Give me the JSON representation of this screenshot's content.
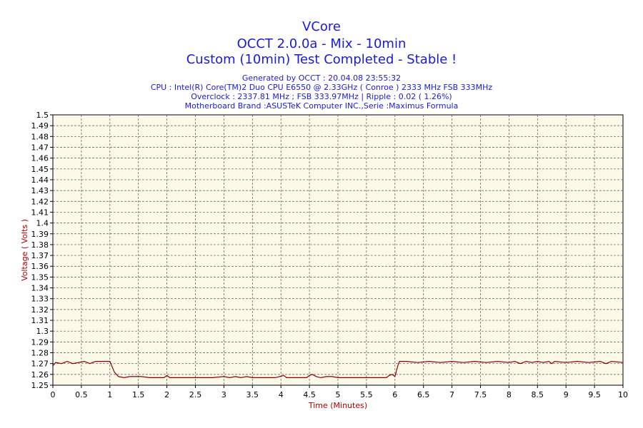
{
  "title": "VCore",
  "subtitle1": "OCCT 2.0.0a - Mix - 10min",
  "subtitle2": "Custom (10min) Test Completed - Stable !",
  "info": [
    "Generated by OCCT : 20.04.08 23:55:32",
    "CPU : Intel(R) Core(TM)2 Duo CPU E6550 @ 2.33GHz ( Conroe ) 2333 MHz FSB 333MHz",
    "Overclock : 2337.81 MHz ; FSB 333.97MHz | Ripple : 0.02 ( 1.26%)",
    "Motherboard Brand :ASUSTeK Computer INC.,Serie :Maximus Formula"
  ],
  "colors": {
    "text": "#1a1adb",
    "line": "#8b0000",
    "plot_bg": "#fdf9e8",
    "axis_label": "#b00000"
  },
  "chart_data": {
    "type": "line",
    "xlabel": "Time (Minutes)",
    "ylabel": "Voltage ( Volts )",
    "xlim": [
      0,
      10
    ],
    "ylim": [
      1.25,
      1.5
    ],
    "x_ticks": [
      "0",
      "0.5",
      "1",
      "1.5",
      "2",
      "2.5",
      "3",
      "3.5",
      "4",
      "4.5",
      "5",
      "5.5",
      "6",
      "6.5",
      "7",
      "7.5",
      "8",
      "8.5",
      "9",
      "9.5",
      "10"
    ],
    "y_ticks": [
      "1.25",
      "1.26",
      "1.27",
      "1.28",
      "1.29",
      "1.3",
      "1.31",
      "1.32",
      "1.33",
      "1.34",
      "1.35",
      "1.36",
      "1.37",
      "1.38",
      "1.39",
      "1.4",
      "1.41",
      "1.42",
      "1.43",
      "1.44",
      "1.45",
      "1.46",
      "1.47",
      "1.48",
      "1.49",
      "1.5"
    ],
    "grid": true,
    "series": [
      {
        "values": [
          [
            0,
            1.268
          ],
          [
            0.05,
            1.271
          ],
          [
            0.15,
            1.27
          ],
          [
            0.25,
            1.272
          ],
          [
            0.35,
            1.27
          ],
          [
            0.45,
            1.271
          ],
          [
            0.55,
            1.272
          ],
          [
            0.65,
            1.27
          ],
          [
            0.75,
            1.272
          ],
          [
            0.85,
            1.272
          ],
          [
            0.95,
            1.272
          ],
          [
            1.0,
            1.272
          ],
          [
            1.08,
            1.262
          ],
          [
            1.15,
            1.258
          ],
          [
            1.25,
            1.257
          ],
          [
            1.35,
            1.258
          ],
          [
            1.45,
            1.258
          ],
          [
            1.55,
            1.258
          ],
          [
            1.7,
            1.257
          ],
          [
            1.85,
            1.257
          ],
          [
            1.95,
            1.257
          ],
          [
            2.0,
            1.259
          ],
          [
            2.05,
            1.257
          ],
          [
            2.2,
            1.257
          ],
          [
            2.5,
            1.257
          ],
          [
            2.8,
            1.257
          ],
          [
            3.0,
            1.258
          ],
          [
            3.1,
            1.257
          ],
          [
            3.2,
            1.258
          ],
          [
            3.3,
            1.257
          ],
          [
            3.4,
            1.258
          ],
          [
            3.5,
            1.257
          ],
          [
            3.7,
            1.257
          ],
          [
            3.9,
            1.257
          ],
          [
            4.05,
            1.259
          ],
          [
            4.1,
            1.257
          ],
          [
            4.3,
            1.257
          ],
          [
            4.45,
            1.257
          ],
          [
            4.5,
            1.259
          ],
          [
            4.55,
            1.26
          ],
          [
            4.62,
            1.258
          ],
          [
            4.7,
            1.257
          ],
          [
            4.8,
            1.258
          ],
          [
            4.9,
            1.258
          ],
          [
            5.0,
            1.257
          ],
          [
            5.2,
            1.257
          ],
          [
            5.5,
            1.257
          ],
          [
            5.7,
            1.257
          ],
          [
            5.85,
            1.257
          ],
          [
            5.9,
            1.259
          ],
          [
            5.95,
            1.26
          ],
          [
            6.0,
            1.258
          ],
          [
            6.05,
            1.268
          ],
          [
            6.08,
            1.272
          ],
          [
            6.2,
            1.272
          ],
          [
            6.4,
            1.271
          ],
          [
            6.6,
            1.272
          ],
          [
            6.8,
            1.271
          ],
          [
            7.0,
            1.272
          ],
          [
            7.2,
            1.271
          ],
          [
            7.4,
            1.272
          ],
          [
            7.6,
            1.271
          ],
          [
            7.8,
            1.272
          ],
          [
            8.0,
            1.271
          ],
          [
            8.1,
            1.272
          ],
          [
            8.2,
            1.27
          ],
          [
            8.3,
            1.272
          ],
          [
            8.4,
            1.271
          ],
          [
            8.5,
            1.272
          ],
          [
            8.6,
            1.271
          ],
          [
            8.7,
            1.272
          ],
          [
            8.75,
            1.27
          ],
          [
            8.8,
            1.272
          ],
          [
            9.0,
            1.271
          ],
          [
            9.2,
            1.272
          ],
          [
            9.4,
            1.271
          ],
          [
            9.6,
            1.272
          ],
          [
            9.7,
            1.27
          ],
          [
            9.8,
            1.272
          ],
          [
            10.0,
            1.271
          ]
        ]
      }
    ]
  }
}
